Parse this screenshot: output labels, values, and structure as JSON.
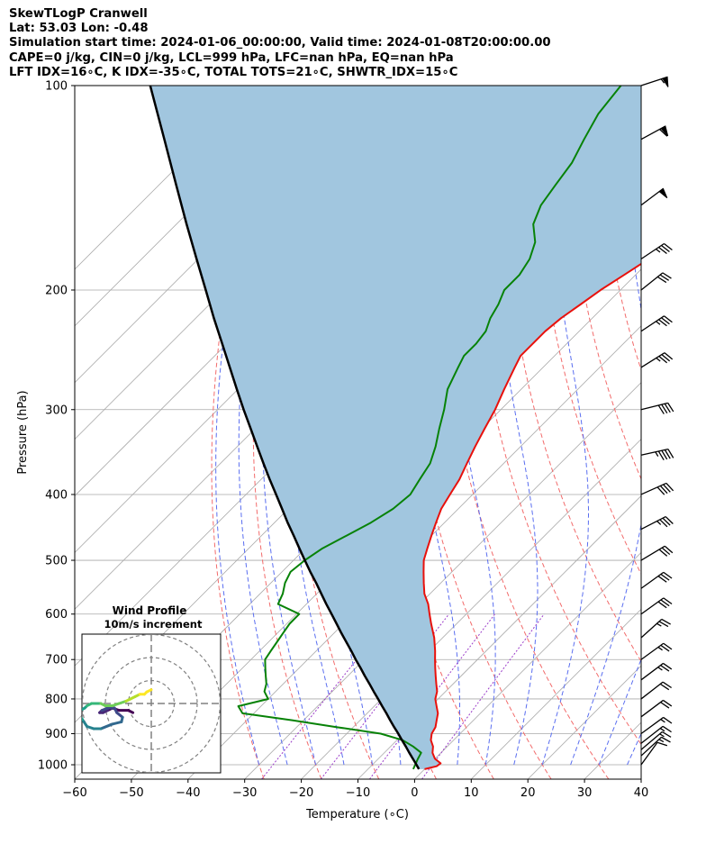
{
  "header": {
    "lines": [
      "SkewTLogP Cranwell",
      "Lat: 53.03   Lon: -0.48",
      "Simulation start time: 2024-01-06_00:00:00, Valid time: 2024-01-08T20:00:00.00",
      "CAPE=0 j/kg, CIN=0 j/kg, LCL=999 hPa, LFC=nan hPa, EQ=nan hPa",
      "LFT IDX=16∘C, K IDX=-35∘C, TOTAL TOTS=21∘C, SHWTR_IDX=15∘C"
    ]
  },
  "chart_data": {
    "type": "line",
    "subtype": "skew-T log-P diagram",
    "xlabel": "Temperature (∘C)",
    "ylabel": "Pressure (hPa)",
    "xlim": [
      -60,
      40
    ],
    "ylim": [
      1050,
      100
    ],
    "y_scale": "log",
    "x_ticks": [
      "−60",
      "−50",
      "−40",
      "−30",
      "−20",
      "−10",
      "0",
      "10",
      "20",
      "30",
      "40"
    ],
    "y_ticks": [
      "100",
      "200",
      "300",
      "400",
      "500",
      "600",
      "700",
      "800",
      "900",
      "1000"
    ],
    "grid": true,
    "colors": {
      "temperature": "#e8110c",
      "dewpoint": "#078207",
      "parcel": "#000000",
      "shade": "#a1c6df",
      "dry_adiabats": "#f26b6b",
      "moist_adiabats": "#5a6ef0",
      "mixing_ratio": "#9b3cc9",
      "isotherms": "#a9a9a9"
    },
    "series": [
      {
        "role": "temperature",
        "p": [
          1015,
          1005,
          995,
          980,
          960,
          940,
          920,
          900,
          880,
          860,
          840,
          820,
          800,
          780,
          760,
          740,
          720,
          700,
          680,
          650,
          620,
          600,
          580,
          560,
          540,
          520,
          500,
          480,
          460,
          440,
          420,
          400,
          380,
          360,
          340,
          320,
          300,
          280,
          260,
          250,
          240,
          230,
          220,
          210,
          200,
          190,
          180,
          170,
          160,
          150,
          140,
          130,
          120,
          110,
          100
        ],
        "t": [
          0,
          1.6,
          1.8,
          0,
          -1.5,
          -2.5,
          -4,
          -5,
          -5.5,
          -6.5,
          -7.5,
          -9,
          -10.5,
          -11.5,
          -13,
          -14.5,
          -16,
          -17.5,
          -19,
          -21.5,
          -24.5,
          -26.5,
          -28.5,
          -31,
          -33,
          -35,
          -37,
          -38.5,
          -40,
          -41.5,
          -43,
          -44,
          -45,
          -46.5,
          -48,
          -49.5,
          -51,
          -53,
          -55,
          -56,
          -56,
          -56,
          -55.5,
          -54.5,
          -53.5,
          -52,
          -50.5,
          -49.5,
          -50,
          -50,
          -50.5,
          -51,
          -51,
          -50.5,
          -51
        ]
      },
      {
        "role": "dewpoint",
        "p": [
          1015,
          980,
          960,
          940,
          920,
          900,
          880,
          860,
          850,
          840,
          820,
          800,
          780,
          760,
          740,
          720,
          700,
          680,
          660,
          640,
          620,
          600,
          580,
          560,
          540,
          520,
          500,
          480,
          460,
          440,
          420,
          400,
          380,
          360,
          340,
          320,
          300,
          280,
          260,
          250,
          240,
          230,
          220,
          210,
          200,
          190,
          180,
          170,
          160,
          150,
          140,
          130,
          120,
          110,
          100
        ],
        "t": [
          -2,
          -3,
          -3.5,
          -6,
          -9,
          -14,
          -23,
          -32,
          -37,
          -42,
          -44,
          -40,
          -42,
          -43,
          -44.5,
          -46,
          -47.5,
          -48,
          -48.5,
          -49,
          -49.5,
          -49.5,
          -55,
          -56,
          -57.5,
          -58.5,
          -58,
          -57,
          -55,
          -53,
          -51.5,
          -51,
          -52,
          -53,
          -55,
          -57.5,
          -60,
          -63,
          -65,
          -66,
          -66,
          -66.5,
          -68,
          -69,
          -70.5,
          -70.5,
          -71.5,
          -73.5,
          -77,
          -79,
          -80,
          -81,
          -83,
          -85,
          -86
        ]
      },
      {
        "role": "parcel",
        "p": [
          1015,
          1000,
          980,
          960,
          940,
          920,
          900,
          880,
          860,
          840,
          820,
          800,
          780,
          760,
          740,
          720,
          700,
          680,
          660,
          640,
          620,
          600,
          580,
          560,
          540,
          520,
          500,
          480,
          460,
          440,
          420,
          400,
          380,
          360,
          340,
          320,
          300,
          280,
          260,
          240,
          220,
          200,
          180,
          160,
          140,
          120,
          100
        ],
        "t": [
          -1,
          -2.2,
          -3.9,
          -5.6,
          -7.3,
          -9.1,
          -10.9,
          -12.8,
          -14.7,
          -16.6,
          -18.6,
          -20.6,
          -22.7,
          -24.8,
          -27,
          -29.2,
          -31.5,
          -33.8,
          -36.2,
          -38.7,
          -41.2,
          -43.8,
          -46.5,
          -49.2,
          -52,
          -55,
          -58,
          -61.1,
          -64.3,
          -67.7,
          -71.1,
          -74.7,
          -78.5,
          -82.4,
          -86.5,
          -90.8,
          -95.4,
          -100.2,
          -105.3,
          -110.8,
          -116.8,
          -123.2,
          -130.3,
          -138.2,
          -147,
          -157.1,
          -169.1
        ]
      }
    ],
    "hodograph": {
      "title": "Wind Profile",
      "subtitle": "10m/s increment",
      "rings_ms": [
        10,
        20,
        30
      ],
      "u": [
        -8,
        -10,
        -14,
        -17,
        -19,
        -21,
        -22.5,
        -21.5,
        -19,
        -16,
        -15,
        -12.5,
        -13,
        -17,
        -22,
        -25,
        -28,
        -30,
        -32,
        -31,
        -29,
        -28,
        -26,
        -24,
        -22,
        -20,
        -17,
        -14,
        -11,
        -9,
        -7,
        -5,
        -3,
        -2,
        0
      ],
      "v": [
        4,
        3,
        3,
        2,
        3,
        4,
        4,
        3,
        2,
        2,
        4,
        6,
        8,
        9,
        11,
        11,
        10,
        7,
        4,
        3,
        2,
        1,
        0,
        0,
        0,
        1,
        1,
        0,
        -1,
        -2,
        -3,
        -4,
        -4,
        -5,
        -6
      ],
      "colormap": "viridis"
    },
    "wind_barbs": [
      {
        "p": 100,
        "u": 55,
        "v": 18
      },
      {
        "p": 120,
        "u": 55,
        "v": 30
      },
      {
        "p": 150,
        "u": 40,
        "v": 30
      },
      {
        "p": 180,
        "u": 30,
        "v": 20
      },
      {
        "p": 200,
        "u": 25,
        "v": 20
      },
      {
        "p": 230,
        "u": 30,
        "v": 20
      },
      {
        "p": 260,
        "u": 32,
        "v": 20
      },
      {
        "p": 300,
        "u": 40,
        "v": 10
      },
      {
        "p": 350,
        "u": 45,
        "v": 10
      },
      {
        "p": 400,
        "u": 40,
        "v": 18
      },
      {
        "p": 450,
        "u": 35,
        "v": 18
      },
      {
        "p": 500,
        "u": 30,
        "v": 18
      },
      {
        "p": 550,
        "u": 25,
        "v": 18
      },
      {
        "p": 600,
        "u": 25,
        "v": 18
      },
      {
        "p": 650,
        "u": 20,
        "v": 18
      },
      {
        "p": 700,
        "u": 22,
        "v": 16
      },
      {
        "p": 750,
        "u": 20,
        "v": 15
      },
      {
        "p": 800,
        "u": 18,
        "v": 14
      },
      {
        "p": 850,
        "u": 16,
        "v": 12
      },
      {
        "p": 900,
        "u": 15,
        "v": 11
      },
      {
        "p": 930,
        "u": 14,
        "v": 11
      },
      {
        "p": 950,
        "u": 13,
        "v": 11
      },
      {
        "p": 970,
        "u": 12,
        "v": 11
      },
      {
        "p": 1000,
        "u": 8,
        "v": 11
      }
    ]
  }
}
